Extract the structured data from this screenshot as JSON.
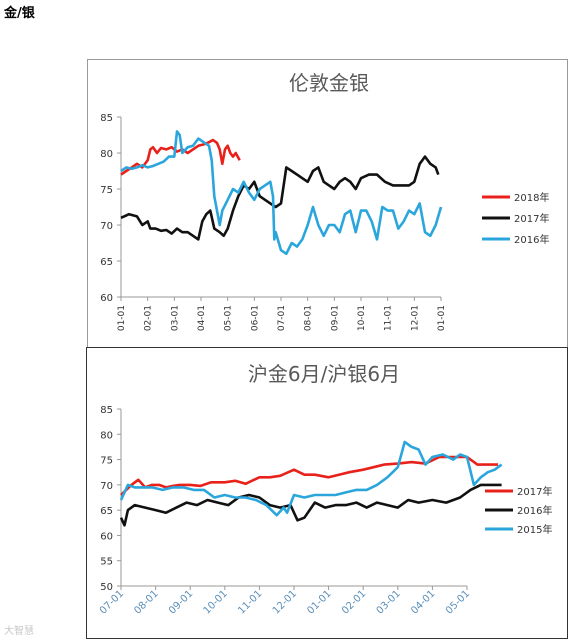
{
  "page": {
    "heading": "金/银",
    "watermark": "大智慧"
  },
  "chart_data": [
    {
      "type": "line",
      "title": "伦敦金银",
      "ylim": [
        60,
        85
      ],
      "yticks": [
        60,
        65,
        70,
        75,
        80,
        85
      ],
      "xticks": [
        "01-01",
        "02-01",
        "03-01",
        "04-01",
        "05-01",
        "06-01",
        "07-01",
        "08-01",
        "09-01",
        "10-01",
        "11-01",
        "12-01",
        "01-01"
      ],
      "x_positions": [
        0,
        1,
        2,
        3,
        4,
        5,
        6,
        7,
        8,
        9,
        10,
        11,
        12
      ],
      "grid": false,
      "legend": "right",
      "series": [
        {
          "name": "2018年",
          "color": "#e8211b",
          "x": [
            0,
            0.2,
            0.4,
            0.6,
            0.8,
            1.0,
            1.1,
            1.2,
            1.35,
            1.5,
            1.7,
            1.9,
            2.1,
            2.3,
            2.5,
            2.7,
            2.9,
            3.1,
            3.3,
            3.45,
            3.6,
            3.7,
            3.8,
            3.9,
            4.0,
            4.1,
            4.2,
            4.3,
            4.45
          ],
          "y": [
            77,
            77.5,
            78,
            78.5,
            78,
            79,
            80.5,
            80.8,
            80,
            80.7,
            80.5,
            80.8,
            80.2,
            80.5,
            80,
            80.5,
            81,
            81.2,
            81.5,
            81.8,
            81.4,
            80.5,
            78.5,
            80.5,
            81,
            80,
            79.5,
            80,
            79
          ]
        },
        {
          "name": "2017年",
          "color": "#111111",
          "x": [
            0,
            0.3,
            0.6,
            0.8,
            1.0,
            1.1,
            1.3,
            1.5,
            1.7,
            1.9,
            2.1,
            2.3,
            2.5,
            2.7,
            2.9,
            3.05,
            3.2,
            3.35,
            3.5,
            3.7,
            3.85,
            4.0,
            4.2,
            4.4,
            4.6,
            4.8,
            5.0,
            5.2,
            5.4,
            5.6,
            5.8,
            6.0,
            6.2,
            6.4,
            6.6,
            6.8,
            7.0,
            7.2,
            7.4,
            7.6,
            7.8,
            8.0,
            8.2,
            8.4,
            8.6,
            8.8,
            9.0,
            9.3,
            9.6,
            9.9,
            10.2,
            10.5,
            10.8,
            11.0,
            11.2,
            11.4,
            11.6,
            11.8,
            11.9
          ],
          "y": [
            71,
            71.5,
            71.2,
            70,
            70.5,
            69.5,
            69.5,
            69.2,
            69.3,
            68.8,
            69.5,
            69,
            69,
            68.5,
            68,
            70.5,
            71.5,
            72,
            69.5,
            69,
            68.5,
            69.5,
            72,
            74,
            75.5,
            75,
            76,
            74,
            73.5,
            73,
            72.5,
            73,
            78,
            77.5,
            77,
            76.5,
            76,
            77.5,
            78,
            76,
            75.5,
            75,
            76,
            76.5,
            76,
            75,
            76.5,
            77,
            77,
            76,
            75.5,
            75.5,
            75.5,
            76,
            78.5,
            79.5,
            78.5,
            78,
            77
          ]
        },
        {
          "name": "2016年",
          "color": "#2aa6dc",
          "x": [
            0,
            0.2,
            0.4,
            0.6,
            0.8,
            1.0,
            1.2,
            1.4,
            1.6,
            1.8,
            2.0,
            2.1,
            2.2,
            2.3,
            2.5,
            2.7,
            2.9,
            3.1,
            3.3,
            3.4,
            3.5,
            3.6,
            3.7,
            3.8,
            4.0,
            4.2,
            4.4,
            4.6,
            4.8,
            5.0,
            5.2,
            5.4,
            5.6,
            5.7,
            5.75,
            5.8,
            6.0,
            6.2,
            6.4,
            6.6,
            6.8,
            7.0,
            7.2,
            7.4,
            7.6,
            7.8,
            8.0,
            8.2,
            8.4,
            8.6,
            8.8,
            9.0,
            9.2,
            9.4,
            9.6,
            9.8,
            10.0,
            10.2,
            10.4,
            10.6,
            10.8,
            11.0,
            11.2,
            11.4,
            11.6,
            11.8,
            12.0
          ],
          "y": [
            77.5,
            78,
            77.8,
            78,
            78.3,
            78,
            78.2,
            78.5,
            78.8,
            79.5,
            79.5,
            83,
            82.5,
            80,
            80.8,
            81,
            82,
            81.5,
            81,
            79,
            74,
            72,
            70,
            72,
            73.5,
            75,
            74.5,
            76,
            74.5,
            73.5,
            75,
            75.5,
            76,
            74,
            68,
            69,
            66.5,
            66,
            67.5,
            67,
            68,
            70,
            72.5,
            70,
            68.5,
            70,
            70,
            69,
            71.5,
            72,
            69,
            72,
            72,
            70.5,
            68,
            72.5,
            72,
            72,
            69.5,
            70.5,
            72,
            71.5,
            73,
            69,
            68.5,
            70,
            72.5
          ]
        }
      ]
    },
    {
      "type": "line",
      "title": "沪金6月/沪银6月",
      "ylim": [
        50,
        85
      ],
      "yticks": [
        50,
        55,
        60,
        65,
        70,
        75,
        80,
        85
      ],
      "xticks": [
        "07-01",
        "08-01",
        "09-01",
        "10-01",
        "11-01",
        "12-01",
        "01-01",
        "02-01",
        "03-01",
        "04-01",
        "05-01"
      ],
      "x_positions": [
        0,
        1,
        2,
        3,
        4,
        5,
        6,
        7,
        8,
        9,
        10
      ],
      "grid": false,
      "legend": "right",
      "series": [
        {
          "name": "2017年",
          "color": "#e8211b",
          "x": [
            0,
            0.3,
            0.5,
            0.7,
            0.9,
            1.1,
            1.3,
            1.5,
            1.7,
            2.0,
            2.3,
            2.6,
            3.0,
            3.3,
            3.6,
            4.0,
            4.3,
            4.6,
            5.0,
            5.3,
            5.6,
            6.0,
            6.3,
            6.6,
            7.0,
            7.3,
            7.6,
            8.0,
            8.4,
            8.8,
            9.2,
            9.6,
            10.0,
            10.3,
            10.6,
            10.9
          ],
          "y": [
            68,
            70,
            71,
            69.5,
            70,
            70,
            69.5,
            69.8,
            70,
            70,
            69.8,
            70.5,
            70.5,
            70.8,
            70.2,
            71.5,
            71.5,
            71.8,
            73,
            72,
            72,
            71.5,
            72,
            72.5,
            73,
            73.5,
            74,
            74.2,
            74.5,
            74.2,
            75.5,
            75.5,
            75.5,
            74,
            74,
            74
          ]
        },
        {
          "name": "2016年",
          "color": "#111111",
          "x": [
            0,
            0.1,
            0.2,
            0.4,
            0.7,
            1.0,
            1.3,
            1.6,
            1.9,
            2.2,
            2.5,
            2.8,
            3.1,
            3.4,
            3.7,
            4.0,
            4.3,
            4.6,
            4.9,
            5.1,
            5.3,
            5.6,
            5.9,
            6.2,
            6.5,
            6.8,
            7.1,
            7.4,
            7.7,
            8.0,
            8.3,
            8.6,
            9.0,
            9.4,
            9.8,
            10.1,
            10.4,
            10.8,
            11.0
          ],
          "y": [
            63.5,
            62,
            65,
            66,
            65.5,
            65,
            64.5,
            65.5,
            66.5,
            66,
            67,
            66.5,
            66,
            67.5,
            68,
            67.5,
            66,
            65.5,
            66,
            63,
            63.5,
            66.5,
            65.5,
            66,
            66,
            66.5,
            65.5,
            66.5,
            66,
            65.5,
            67,
            66.5,
            67,
            66.5,
            67.5,
            69,
            70,
            70,
            70
          ]
        },
        {
          "name": "2015年",
          "color": "#2aa6dc",
          "x": [
            0,
            0.2,
            0.4,
            0.6,
            0.9,
            1.2,
            1.5,
            1.8,
            2.1,
            2.4,
            2.7,
            3.0,
            3.3,
            3.6,
            3.9,
            4.2,
            4.5,
            4.7,
            4.8,
            5.0,
            5.3,
            5.6,
            5.9,
            6.2,
            6.5,
            6.8,
            7.1,
            7.4,
            7.7,
            8.0,
            8.1,
            8.2,
            8.4,
            8.6,
            8.8,
            9.0,
            9.3,
            9.6,
            9.8,
            10.0,
            10.2,
            10.4,
            10.6,
            10.8,
            11.0
          ],
          "y": [
            67,
            70,
            69.5,
            69.5,
            69.5,
            69,
            69.5,
            69.5,
            69,
            69,
            67.5,
            68,
            67.5,
            67.5,
            67,
            66,
            64,
            65.5,
            64.5,
            68,
            67.5,
            68,
            68,
            68,
            68.5,
            69,
            69,
            70,
            71.5,
            73.5,
            76,
            78.5,
            77.5,
            77,
            74,
            75.5,
            76,
            75,
            76,
            75.5,
            70,
            71.5,
            72.5,
            73,
            74
          ]
        }
      ]
    }
  ]
}
